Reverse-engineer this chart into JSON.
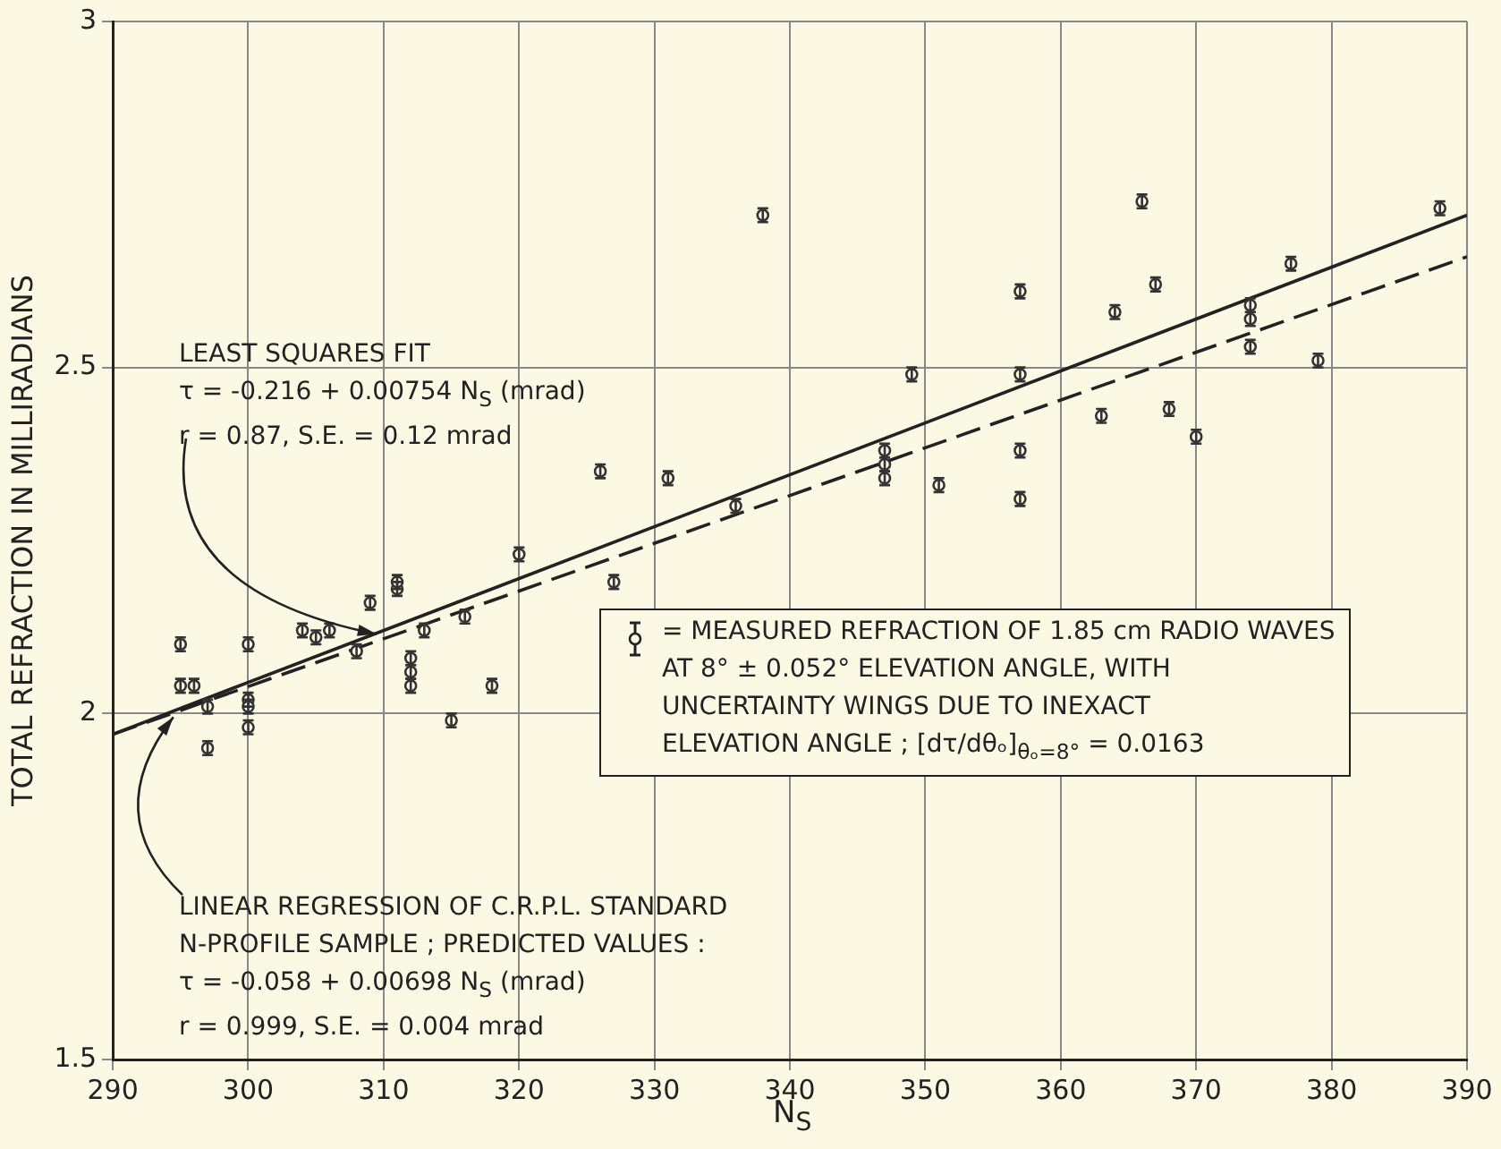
{
  "chart_data": {
    "type": "scatter",
    "xlabel": "N$_{S}$",
    "ylabel": "TOTAL REFRACTION IN MILLIRADIANS",
    "xlim": [
      290,
      390
    ],
    "xticks": [
      290,
      300,
      310,
      320,
      330,
      340,
      350,
      360,
      370,
      380,
      390
    ],
    "ylim": [
      1.5,
      3
    ],
    "yticks": [
      1.5,
      2,
      2.5,
      3
    ],
    "grid": true,
    "marker": "circle",
    "series": [
      {
        "color": "#333333",
        "x": [
          295,
          295,
          296,
          297,
          297,
          300,
          300,
          300,
          300,
          304,
          305,
          306,
          308,
          309,
          311,
          311,
          312,
          312,
          312,
          313,
          315,
          316,
          318,
          320,
          326,
          327,
          331,
          336,
          338,
          347,
          347,
          347,
          349,
          351,
          357,
          357,
          357,
          357,
          363,
          364,
          366,
          367,
          368,
          370,
          374,
          374,
          374,
          377,
          379,
          388
        ],
        "values": [
          2.1,
          2.04,
          2.04,
          2.01,
          1.95,
          2.1,
          2.02,
          2.01,
          1.98,
          2.12,
          2.11,
          2.12,
          2.09,
          2.16,
          2.18,
          2.19,
          2.08,
          2.06,
          2.04,
          2.12,
          1.99,
          2.14,
          2.04,
          2.23,
          2.35,
          2.19,
          2.34,
          2.3,
          2.72,
          2.38,
          2.36,
          2.34,
          2.49,
          2.33,
          2.61,
          2.49,
          2.38,
          2.31,
          2.43,
          2.58,
          2.74,
          2.62,
          2.44,
          2.4,
          2.59,
          2.57,
          2.53,
          2.65,
          2.51,
          2.73
        ],
        "errors": [
          0.01,
          0.01,
          0.01,
          0.01,
          0.01,
          0.01,
          0.01,
          0.01,
          0.01,
          0.01,
          0.01,
          0.01,
          0.01,
          0.01,
          0.01,
          0.01,
          0.01,
          0.01,
          0.01,
          0.01,
          0.01,
          0.01,
          0.01,
          0.01,
          0.01,
          0.01,
          0.01,
          0.01,
          0.01,
          0.01,
          0.01,
          0.01,
          0.01,
          0.01,
          0.01,
          0.01,
          0.01,
          0.01,
          0.01,
          0.01,
          0.01,
          0.01,
          0.01,
          0.01,
          0.01,
          0.01,
          0.01,
          0.01,
          0.01,
          0.01
        ]
      },
      {
        "type": "line",
        "color": "#222222",
        "line_style": "solid",
        "marker": "none",
        "x": [
          290,
          390
        ],
        "values": [
          1.97,
          2.72
        ]
      },
      {
        "type": "line",
        "color": "#222222",
        "line_style": "dashed",
        "marker": "none",
        "x": [
          290,
          390
        ],
        "values": [
          1.97,
          2.66
        ]
      }
    ],
    "annotations": [
      {
        "text": "LEAST SQUARES FIT\nτ = -0.216 + 0.00754 N$_{S}$ (mrad)\nr = 0.87, S.E. = 0.12 mrad",
        "x": 310,
        "y": 2.12
      },
      {
        "text": "LINEAR REGRESSION OF C.R.P.L. STANDARD\nN-PROFILE SAMPLE ; PREDICTED VALUES :\nτ = -0.058 + 0.00698 N$_{S}$ (mrad)\nr = 0.999, S.E. = 0.004 mrad",
        "x": 295,
        "y": 2.0
      },
      "= MEASURED REFRACTION OF 1.85 cm RADIO WAVES\nAT 8° ± 0.052° ELEVATION ANGLE, WITH\nUNCERTAINTY WINGS DUE TO INEXACT\nELEVATION ANGLE ; [dτ/dθₒ]$_{θₒ=8°}$ = 0.0163"
    ]
  }
}
